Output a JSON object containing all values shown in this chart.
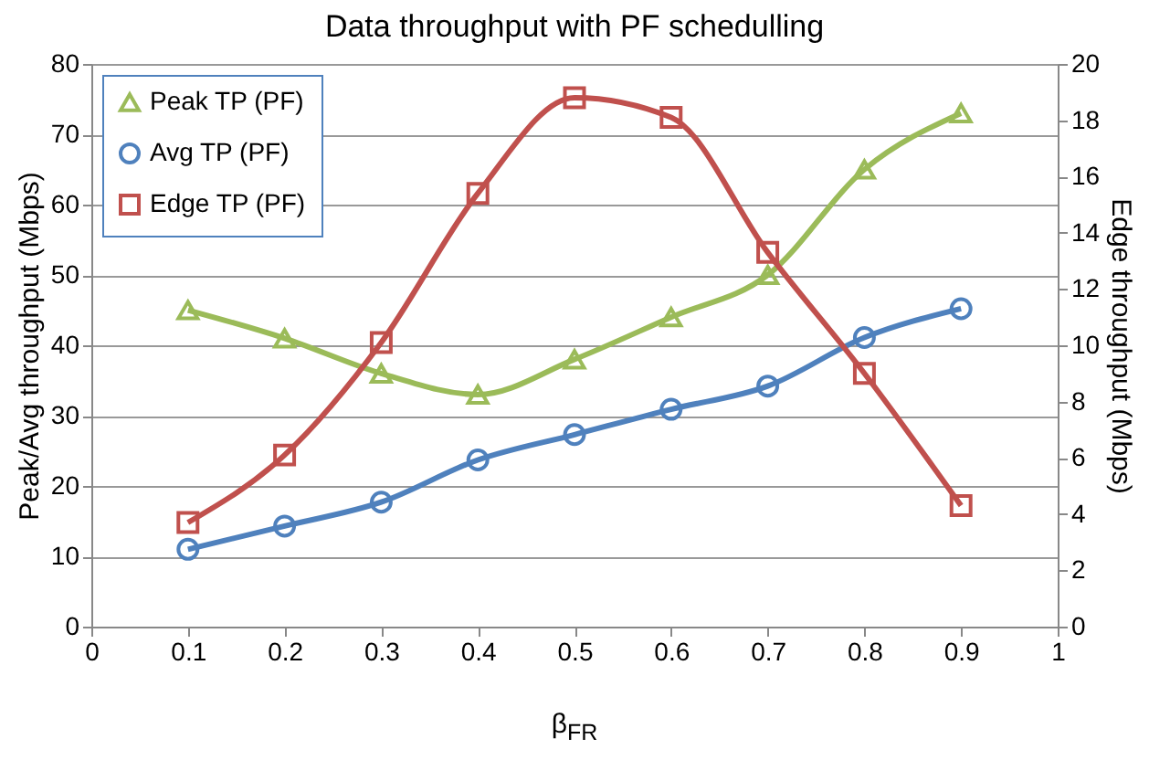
{
  "chart_data": {
    "type": "line",
    "title": "Data throughput with PF schedulling",
    "xlabel": "β$_{FR}$",
    "ylabel": "Peak/Avg throughput (Mbps)",
    "y2label": "Edge throughput (Mbps)",
    "x": [
      0.1,
      0.2,
      0.3,
      0.4,
      0.5,
      0.6,
      0.7,
      0.8,
      0.9
    ],
    "series": [
      {
        "name": "Peak TP (PF)",
        "color": "#9bbb59",
        "marker": "triangle",
        "values": [
          45,
          41,
          36,
          33,
          38,
          44,
          50,
          65,
          73
        ]
      },
      {
        "name": "Avg TP (PF)",
        "color": "#4f81bd",
        "marker": "circle",
        "values": [
          11,
          14.3,
          17.7,
          23.7,
          27.3,
          30.9,
          34.2,
          41.1,
          45.2
        ]
      },
      {
        "name": "Edge TP (PF)",
        "color": "#c0504d",
        "marker": "square",
        "axis": "y2",
        "values": [
          3.7,
          6.1,
          10.1,
          15.4,
          18.8,
          18.1,
          13.3,
          9.0,
          4.3
        ]
      }
    ],
    "xlim": [
      0,
      1
    ],
    "xticks": [
      0,
      0.1,
      0.2,
      0.3,
      0.4,
      0.5,
      0.6,
      0.7,
      0.8,
      0.9,
      1
    ],
    "ylim": [
      0,
      80
    ],
    "yticks": [
      0,
      10,
      20,
      30,
      40,
      50,
      60,
      70,
      80
    ],
    "y2lim": [
      0,
      20
    ],
    "y2ticks": [
      0,
      2,
      4,
      6,
      8,
      10,
      12,
      14,
      16,
      18,
      20
    ],
    "grid": "y",
    "legend": "top left",
    "line_style": "solid"
  }
}
